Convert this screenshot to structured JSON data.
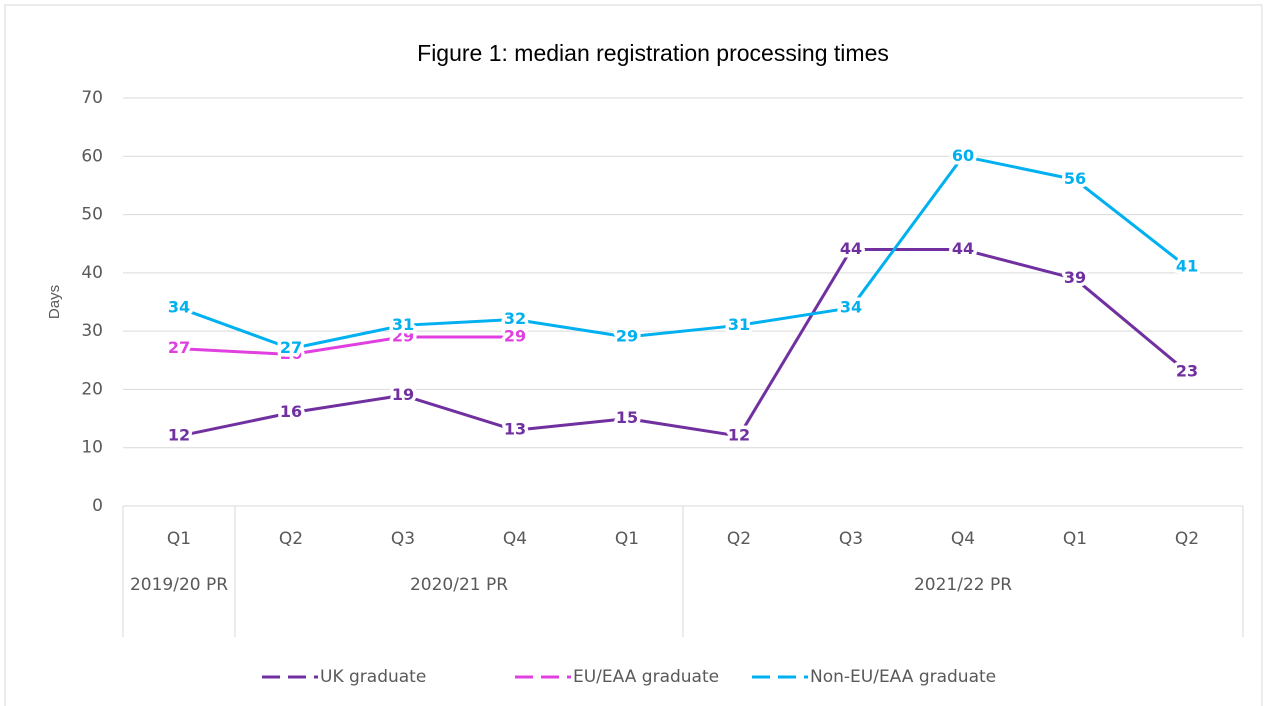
{
  "chart_data": {
    "type": "line",
    "title": "Figure 1: median registration processing times",
    "y_label": "Days",
    "categories": [
      "Q1",
      "Q2",
      "Q3",
      "Q4",
      "Q1",
      "Q2",
      "Q3",
      "Q4",
      "Q1",
      "Q2"
    ],
    "category_groups": [
      "2019/20 PR",
      "2020/21 PR",
      null,
      null,
      null,
      "2021/22 PR",
      null,
      null,
      null,
      null
    ],
    "series": [
      {
        "name": "UK graduate",
        "color": "#7030a0",
        "values": [
          12,
          16,
          19,
          13,
          15,
          12,
          44,
          44,
          39,
          23
        ]
      },
      {
        "name": "EU/EAA graduate",
        "color": "#e040e0",
        "values": [
          27,
          26,
          29,
          29,
          null,
          null,
          null,
          null,
          null,
          null
        ]
      },
      {
        "name": "Non-EU/EAA graduate",
        "color": "#00b0f0",
        "values": [
          34,
          27,
          31,
          32,
          29,
          31,
          34,
          60,
          56,
          41
        ]
      }
    ],
    "ylim": [
      0,
      70
    ],
    "yticks": [
      0,
      10,
      20,
      30,
      40,
      50,
      60,
      70
    ],
    "grid": true,
    "data_labels": true,
    "legend": "bottom"
  }
}
